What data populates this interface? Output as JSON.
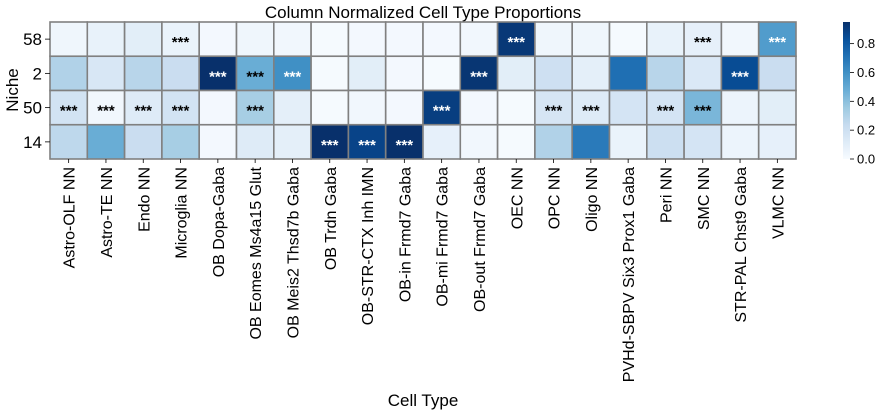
{
  "chart_data": {
    "type": "heatmap",
    "title": "Column Normalized Cell Type Proportions",
    "xlabel": "Cell Type",
    "ylabel": "Niche",
    "rows": [
      "58",
      "2",
      "50",
      "14"
    ],
    "columns": [
      "Astro-OLF NN",
      "Astro-TE NN",
      "Endo NN",
      "Microglia NN",
      "OB Dopa-Gaba",
      "OB Eomes Ms4a15 Glut",
      "OB Meis2 Thsd7b Gaba",
      "OB Trdn Gaba",
      "OB-STR-CTX Inh IMN",
      "OB-in Frmd7 Gaba",
      "OB-mi Frmd7 Gaba",
      "OB-out Frmd7 Gaba",
      "OEC NN",
      "OPC NN",
      "Oligo NN",
      "PVHd-SBPV Six3 Prox1 Gaba",
      "Peri NN",
      "SMC NN",
      "STR-PAL Chst9 Gaba",
      "VLMC NN"
    ],
    "values": [
      [
        0.04,
        0.07,
        0.1,
        0.06,
        0.02,
        0.04,
        0.03,
        0.01,
        0.02,
        0.02,
        0.02,
        0.03,
        0.92,
        0.04,
        0.04,
        0.01,
        0.07,
        0.08,
        0.03,
        0.55
      ],
      [
        0.3,
        0.15,
        0.28,
        0.22,
        0.95,
        0.48,
        0.6,
        0.01,
        0.1,
        0.02,
        0.01,
        0.93,
        0.1,
        0.2,
        0.09,
        0.72,
        0.28,
        0.14,
        0.85,
        0.22
      ],
      [
        0.18,
        0.03,
        0.12,
        0.18,
        0.02,
        0.33,
        0.09,
        0.01,
        0.03,
        0.02,
        0.9,
        0.02,
        0.01,
        0.16,
        0.12,
        0.17,
        0.17,
        0.44,
        0.05,
        0.1
      ],
      [
        0.26,
        0.48,
        0.22,
        0.33,
        0.02,
        0.12,
        0.09,
        0.97,
        0.88,
        0.97,
        0.08,
        0.03,
        0.01,
        0.3,
        0.68,
        0.06,
        0.21,
        0.17,
        0.05,
        0.08
      ]
    ],
    "annotations": [
      [
        "",
        "",
        "",
        "***",
        "",
        "",
        "",
        "",
        "",
        "",
        "",
        "",
        "***",
        "",
        "",
        "",
        "",
        "***",
        "",
        "***"
      ],
      [
        "",
        "",
        "",
        "",
        "***",
        "***",
        "***",
        "",
        "",
        "",
        "",
        "***",
        "",
        "",
        "",
        "",
        "",
        "",
        "***",
        ""
      ],
      [
        "***",
        "***",
        "***",
        "***",
        "",
        "***",
        "",
        "",
        "",
        "",
        "***",
        "",
        "",
        "***",
        "***",
        "",
        "***",
        "***",
        "",
        ""
      ],
      [
        "",
        "",
        "",
        "",
        "",
        "",
        "",
        "***",
        "***",
        "***",
        "",
        "",
        "",
        "",
        "",
        "",
        "",
        "",
        "",
        ""
      ]
    ],
    "colormap": "Blues",
    "colorbar": {
      "range": [
        0.0,
        0.95
      ],
      "ticks": [
        "0.0",
        "0.2",
        "0.4",
        "0.6",
        "0.8"
      ]
    },
    "grid": true,
    "legend": "colorbar right"
  }
}
